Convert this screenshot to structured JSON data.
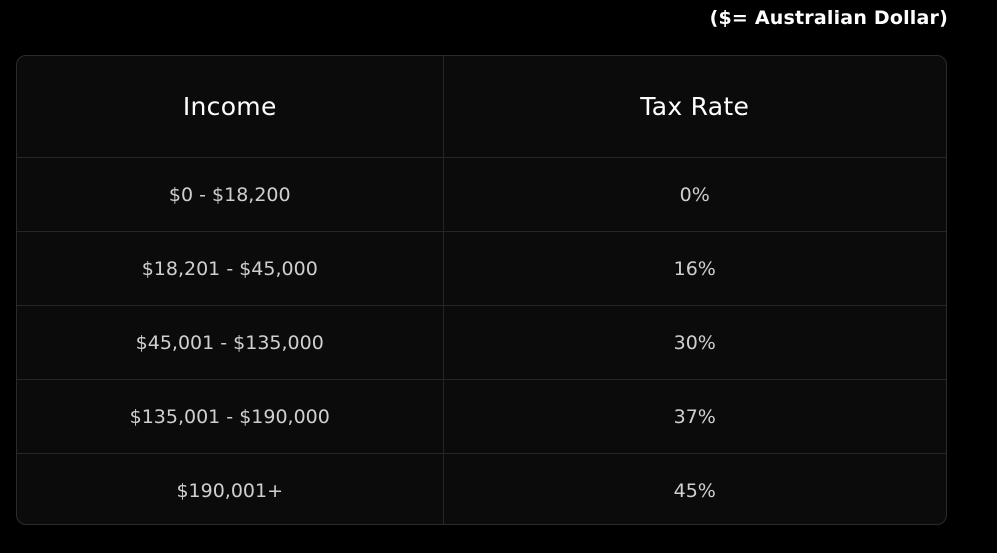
{
  "currency_note": "($= Australian Dollar)",
  "table": {
    "headers": {
      "income": "Income",
      "tax_rate": "Tax Rate"
    },
    "rows": [
      {
        "income": "$0 - $18,200",
        "tax_rate": "0%"
      },
      {
        "income": "$18,201 - $45,000",
        "tax_rate": "16%"
      },
      {
        "income": "$45,001 - $135,000",
        "tax_rate": "30%"
      },
      {
        "income": "$135,001 - $190,000",
        "tax_rate": "37%"
      },
      {
        "income": "$190,001+",
        "tax_rate": "45%"
      }
    ]
  }
}
